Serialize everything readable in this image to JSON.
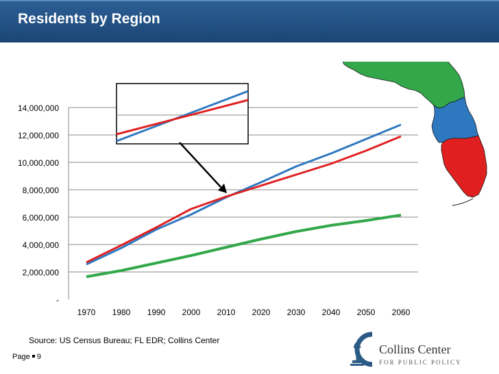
{
  "header": {
    "title": "Residents by Region"
  },
  "footer": {
    "source": "Source: US Census Bureau; FL EDR; Collins Center",
    "page_label": "Page",
    "page_number": "9"
  },
  "logo": {
    "name": "Collins Center",
    "tagline": "FOR PUBLIC POLICY",
    "icon": "torch-c-logo-icon"
  },
  "colors": {
    "north": "#32a84a",
    "central": "#2e78c0",
    "south": "#e02020",
    "zoom_box": "#000000"
  },
  "map": {
    "icon": "florida-regions-map-icon"
  },
  "chart_data": {
    "type": "line",
    "title": "",
    "xlabel": "",
    "ylabel": "",
    "x": [
      "1970",
      "1980",
      "1990",
      "2000",
      "2010",
      "2020",
      "2030",
      "2040",
      "2050",
      "2060"
    ],
    "ylim": [
      0,
      14000000
    ],
    "y_ticks": [
      "-",
      "2,000,000",
      "4,000,000",
      "6,000,000",
      "8,000,000",
      "10,000,000",
      "12,000,000",
      "14,000,000"
    ],
    "grid": true,
    "legend": "map",
    "series": [
      {
        "values": [
          1650000,
          2100000,
          2650000,
          3200000,
          3800000,
          4400000,
          4950000,
          5400000,
          5750000,
          6150000
        ],
        "color": "#32a84a"
      },
      {
        "values": [
          2550000,
          3750000,
          5100000,
          6200000,
          7450000,
          8550000,
          9700000,
          10650000,
          11700000,
          12750000
        ],
        "color": "#2e78c0"
      },
      {
        "values": [
          2700000,
          3950000,
          5250000,
          6600000,
          7500000,
          8300000,
          9100000,
          9900000,
          10850000,
          11900000
        ],
        "color": "#e02020"
      }
    ]
  }
}
